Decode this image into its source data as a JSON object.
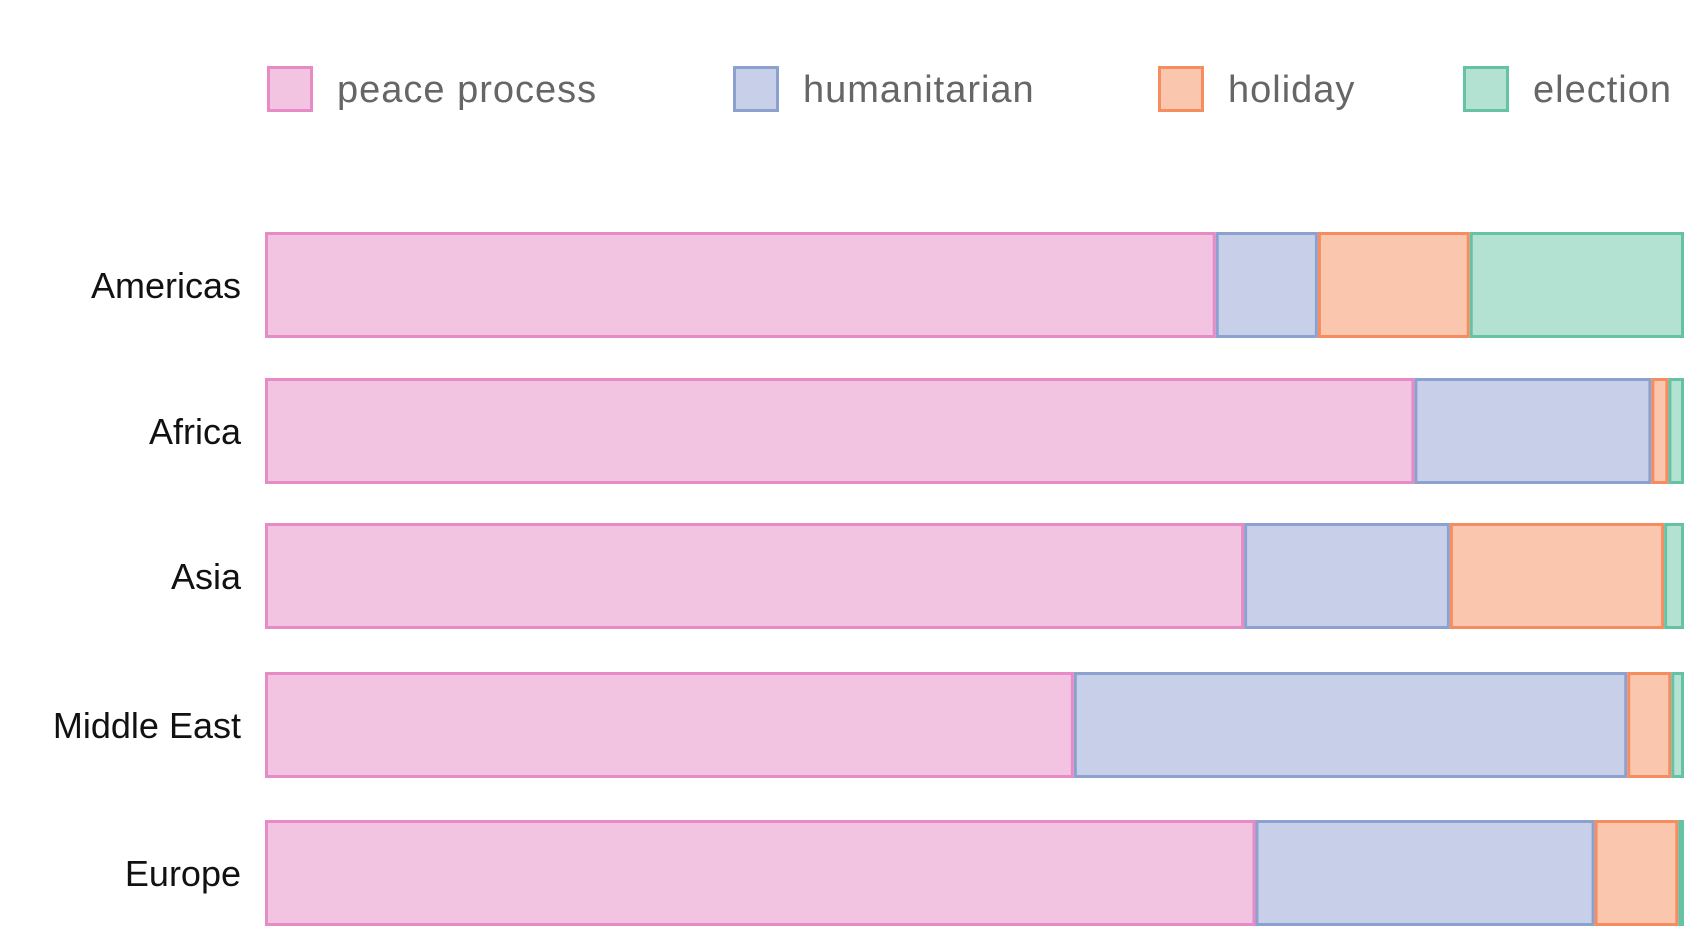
{
  "chart_data": {
    "type": "bar",
    "orientation": "horizontal",
    "stacked": true,
    "normalized": true,
    "categories": [
      "Americas",
      "Africa",
      "Asia",
      "Middle East",
      "Europe"
    ],
    "series": [
      {
        "name": "peace process",
        "values": [
          67.0,
          81.0,
          69.0,
          57.0,
          69.8
        ],
        "fill": "#f2c4e2",
        "stroke": "#e68bc6"
      },
      {
        "name": "humanitarian",
        "values": [
          7.2,
          16.7,
          14.5,
          39.0,
          23.9
        ],
        "fill": "#c8cfe8",
        "stroke": "#8ca1cd"
      },
      {
        "name": "holiday",
        "values": [
          10.7,
          1.2,
          15.1,
          3.1,
          5.9
        ],
        "fill": "#fbc6ae",
        "stroke": "#f58d61"
      },
      {
        "name": "election",
        "values": [
          15.1,
          1.1,
          1.4,
          0.9,
          0.4
        ],
        "fill": "#b3e2d3",
        "stroke": "#66c2a4"
      }
    ],
    "xlim": [
      0,
      100
    ],
    "grid": false,
    "legend_position": "top"
  }
}
